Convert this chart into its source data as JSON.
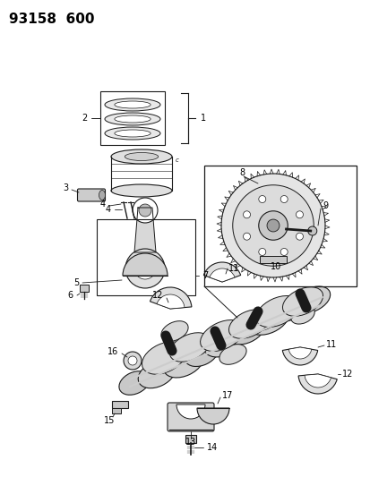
{
  "title": "93158  600",
  "bg_color": "#ffffff",
  "line_color": "#1a1a1a",
  "title_fontsize": 11,
  "label_fontsize": 7,
  "fig_width": 4.14,
  "fig_height": 5.33,
  "dpi": 100
}
